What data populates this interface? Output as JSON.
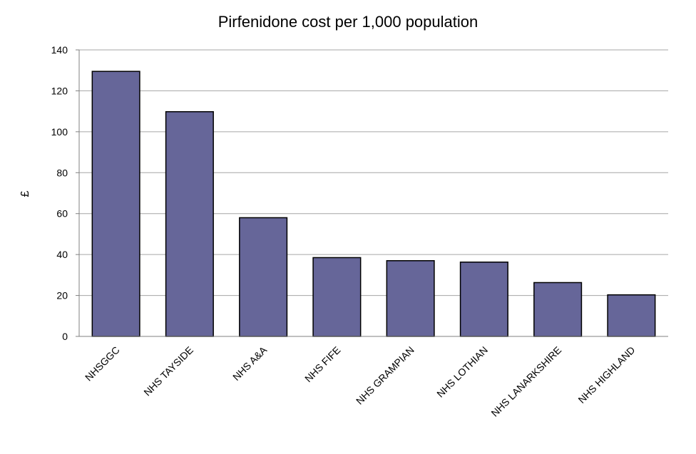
{
  "chart_data": {
    "type": "bar",
    "title": "Pirfenidone cost per 1,000 population",
    "xlabel": "",
    "ylabel": "£",
    "categories": [
      "NHSGGC",
      "NHS TAYSIDE",
      "NHS A&A",
      "NHS FIFE",
      "NHS GRAMPIAN",
      "NHS LOTHIAN",
      "NHS LANARKSHIRE",
      "NHS HIGHLAND"
    ],
    "values": [
      129.5,
      109.8,
      58,
      38.5,
      37,
      36.3,
      26.3,
      20.3
    ],
    "ylim": [
      0,
      140
    ],
    "yticks": [
      "0",
      "20",
      "40",
      "60",
      "80",
      "100",
      "120",
      "140"
    ],
    "grid": true,
    "legend": "none",
    "bar_color": "#666699"
  }
}
